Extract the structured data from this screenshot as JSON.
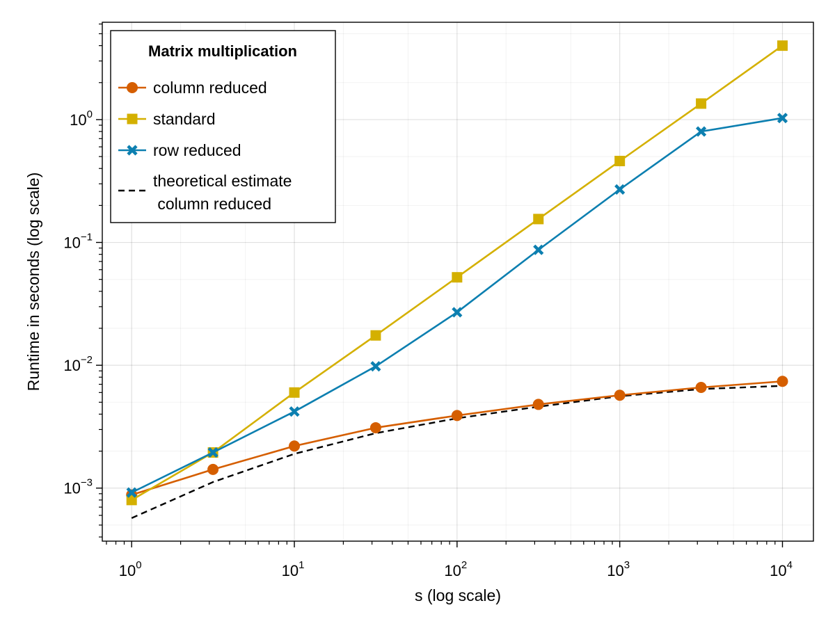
{
  "chart_data": {
    "type": "line",
    "xlabel": "s (log scale)",
    "ylabel": "Runtime in seconds (log scale)",
    "xscale": "log",
    "yscale": "log",
    "xlim": [
      0.66,
      15500
    ],
    "ylim": [
      0.00037,
      6.2
    ],
    "xticks": [
      {
        "value": 1,
        "base": "10",
        "exp": "0"
      },
      {
        "value": 10,
        "base": "10",
        "exp": "1"
      },
      {
        "value": 100,
        "base": "10",
        "exp": "2"
      },
      {
        "value": 1000,
        "base": "10",
        "exp": "3"
      },
      {
        "value": 10000,
        "base": "10",
        "exp": "4"
      }
    ],
    "yticks": [
      {
        "value": 0.001,
        "base": "10",
        "exp": "−3"
      },
      {
        "value": 0.01,
        "base": "10",
        "exp": "−2"
      },
      {
        "value": 0.1,
        "base": "10",
        "exp": "−1"
      },
      {
        "value": 1,
        "base": "10",
        "exp": "0"
      }
    ],
    "grid": true,
    "legend": {
      "title": "Matrix multiplication",
      "position": "top-left"
    },
    "x": [
      1,
      3.162,
      10,
      31.62,
      100,
      316.2,
      1000,
      3162,
      10000
    ],
    "series": [
      {
        "name": "column reduced",
        "color": "#d55e00",
        "marker": "circle",
        "style": "solid",
        "values": [
          0.00088,
          0.00142,
          0.0022,
          0.0031,
          0.0039,
          0.0048,
          0.0057,
          0.0066,
          0.0074
        ]
      },
      {
        "name": "standard",
        "color": "#d4b000",
        "marker": "square",
        "style": "solid",
        "values": [
          0.0008,
          0.00195,
          0.006,
          0.0175,
          0.052,
          0.155,
          0.46,
          1.35,
          4.0
        ]
      },
      {
        "name": "row reduced",
        "color": "#0c7fb0",
        "marker": "x",
        "style": "solid",
        "values": [
          0.00092,
          0.00195,
          0.0042,
          0.0098,
          0.027,
          0.087,
          0.27,
          0.8,
          1.03
        ]
      },
      {
        "name": "theoretical estimate column reduced",
        "name_lines": [
          "theoretical estimate",
          " column reduced"
        ],
        "color": "#000000",
        "marker": "none",
        "style": "dashed",
        "values": [
          0.00057,
          0.00112,
          0.0019,
          0.0028,
          0.0037,
          0.0046,
          0.0056,
          0.0064,
          0.0068
        ]
      }
    ]
  }
}
